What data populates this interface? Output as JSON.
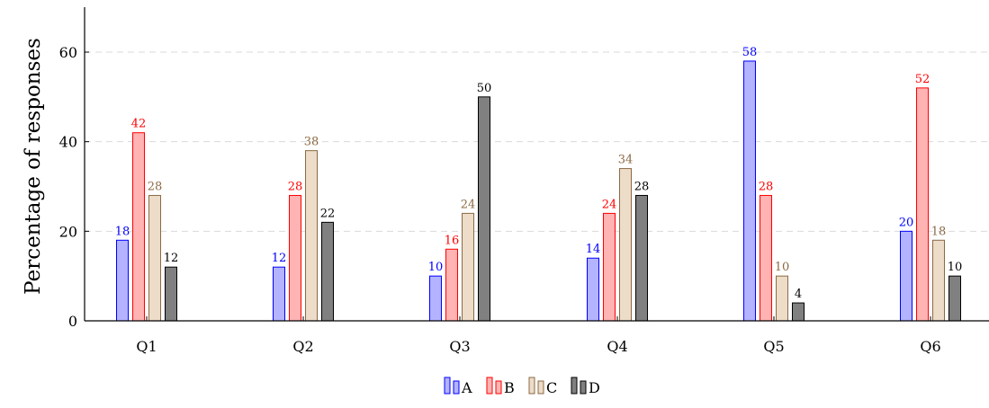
{
  "chart_data": {
    "type": "bar",
    "title": "",
    "xlabel": "",
    "ylabel": "Percentage of responses",
    "categories": [
      "Q1",
      "Q2",
      "Q3",
      "Q4",
      "Q5",
      "Q6"
    ],
    "ylim": [
      0,
      70
    ],
    "yticks": [
      0,
      20,
      40,
      60
    ],
    "grid": "horizontal dashed",
    "legend_position": "bottom-center",
    "series": [
      {
        "name": "A",
        "values": [
          18,
          12,
          10,
          14,
          58,
          20
        ],
        "fill": "#b3b3ff",
        "stroke": "#0000ff",
        "label_color": "#0000ff"
      },
      {
        "name": "B",
        "values": [
          42,
          28,
          16,
          24,
          28,
          52
        ],
        "fill": "#ffb3b3",
        "stroke": "#ff0000",
        "label_color": "#ff0000"
      },
      {
        "name": "C",
        "values": [
          28,
          38,
          24,
          34,
          10,
          18
        ],
        "fill": "#ecdcc8",
        "stroke": "#8b6a45",
        "label_color": "#8b6a45"
      },
      {
        "name": "D",
        "values": [
          12,
          22,
          50,
          28,
          4,
          10
        ],
        "fill": "#808080",
        "stroke": "#000000",
        "label_color": "#000000"
      }
    ]
  }
}
